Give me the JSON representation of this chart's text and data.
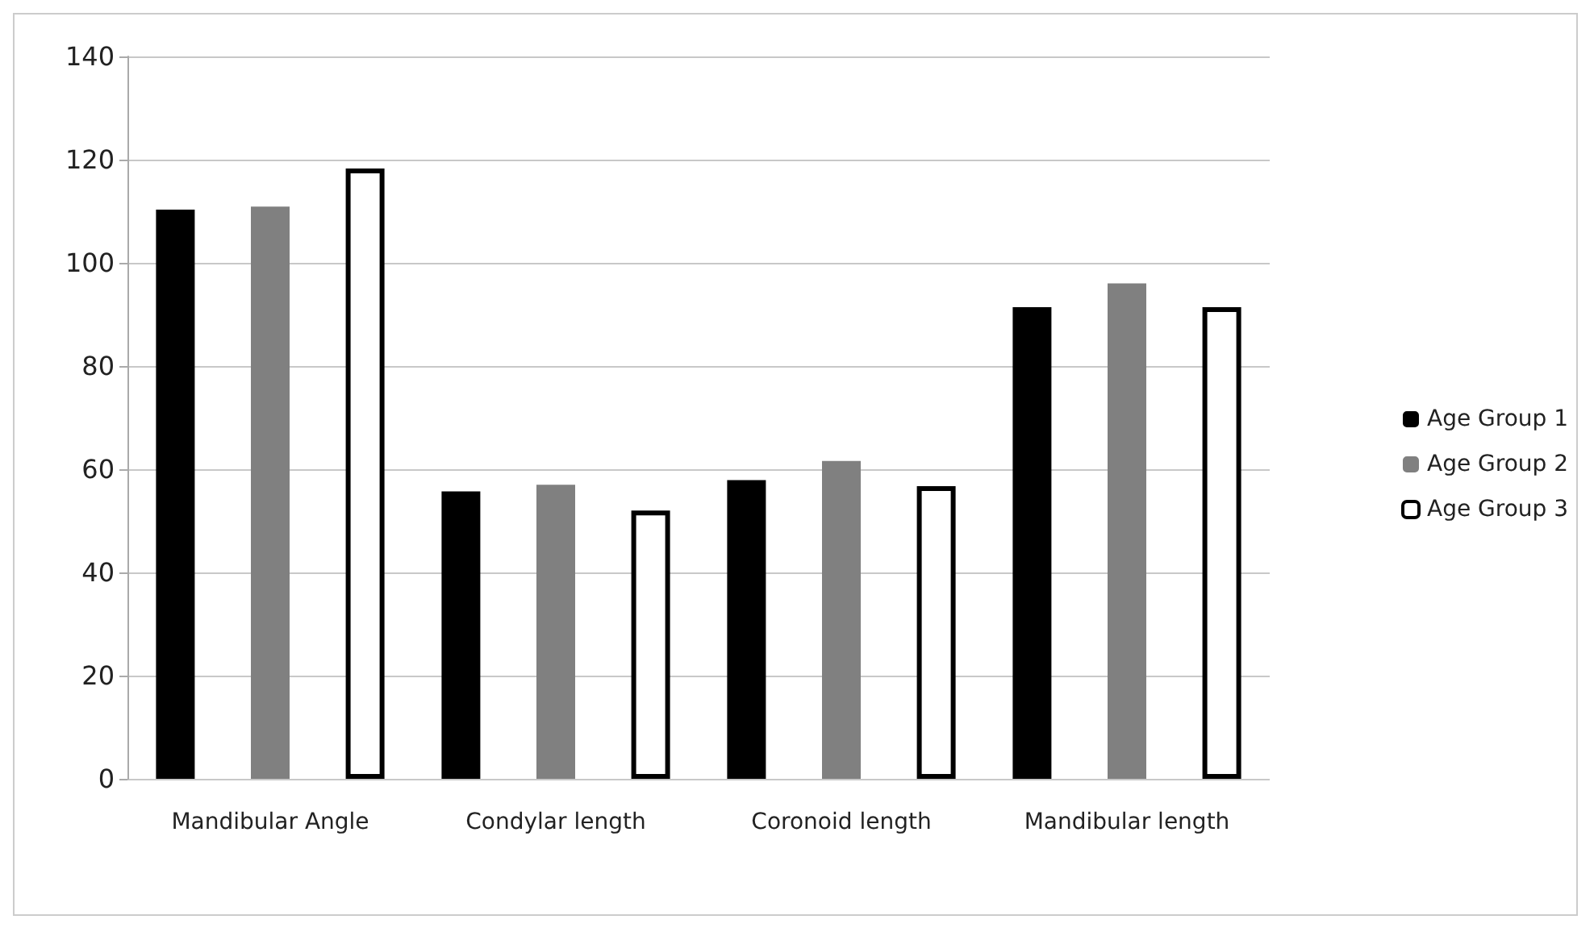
{
  "chart_data": {
    "type": "bar",
    "categories": [
      "Mandibular Angle",
      "Condylar length",
      "Coronoid length",
      "Mandibular length"
    ],
    "series": [
      {
        "name": "Age Group 1",
        "color": "#000000",
        "values": [
          110.3,
          55.7,
          57.9,
          91.4
        ]
      },
      {
        "name": "Age Group 2",
        "color": "#808080",
        "values": [
          110.9,
          57,
          61.6,
          96
        ]
      },
      {
        "name": "Age Group 3",
        "color": "#ffffff",
        "values": [
          118.3,
          52,
          56.7,
          91.4
        ]
      }
    ],
    "ylim": [
      0,
      140
    ],
    "yticks": [
      0,
      20,
      40,
      60,
      80,
      100,
      120,
      140
    ],
    "grid": "y",
    "legend": "right"
  }
}
